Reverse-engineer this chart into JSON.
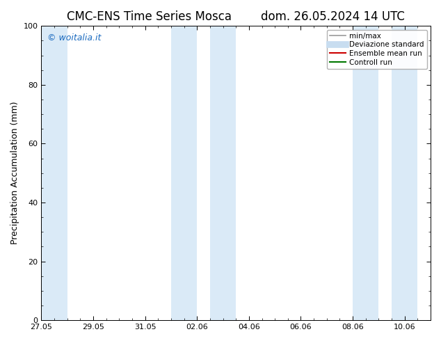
{
  "title": "CMC-ENS Time Series Mosca",
  "title2": "dom. 26.05.2024 14 UTC",
  "ylabel": "Precipitation Accumulation (mm)",
  "ylim": [
    0,
    100
  ],
  "yticks": [
    0,
    20,
    40,
    60,
    80,
    100
  ],
  "bg_color": "#ffffff",
  "plot_bg_color": "#ffffff",
  "watermark": "© woitalia.it",
  "watermark_color": "#1a6abf",
  "band_color": "#daeaf7",
  "bands": [
    [
      0.0,
      1.0
    ],
    [
      5.0,
      6.0
    ],
    [
      6.5,
      7.5
    ],
    [
      12.0,
      13.0
    ],
    [
      13.5,
      14.5
    ]
  ],
  "xtick_labels": [
    "27.05",
    "29.05",
    "31.05",
    "02.06",
    "04.06",
    "06.06",
    "08.06",
    "10.06"
  ],
  "xtick_days": [
    0,
    2,
    4,
    6,
    8,
    10,
    12,
    14
  ],
  "total_days": 15,
  "legend_entries": [
    {
      "label": "min/max",
      "color": "#999999",
      "lw": 1.2,
      "style": "solid"
    },
    {
      "label": "Deviazione standard",
      "color": "#c8ddf0",
      "lw": 7,
      "style": "solid"
    },
    {
      "label": "Ensemble mean run",
      "color": "#cc0000",
      "lw": 1.5,
      "style": "solid"
    },
    {
      "label": "Controll run",
      "color": "#007700",
      "lw": 1.5,
      "style": "solid"
    }
  ],
  "title_fontsize": 12,
  "ylabel_fontsize": 9,
  "tick_fontsize": 8,
  "legend_fontsize": 7.5,
  "watermark_fontsize": 9
}
